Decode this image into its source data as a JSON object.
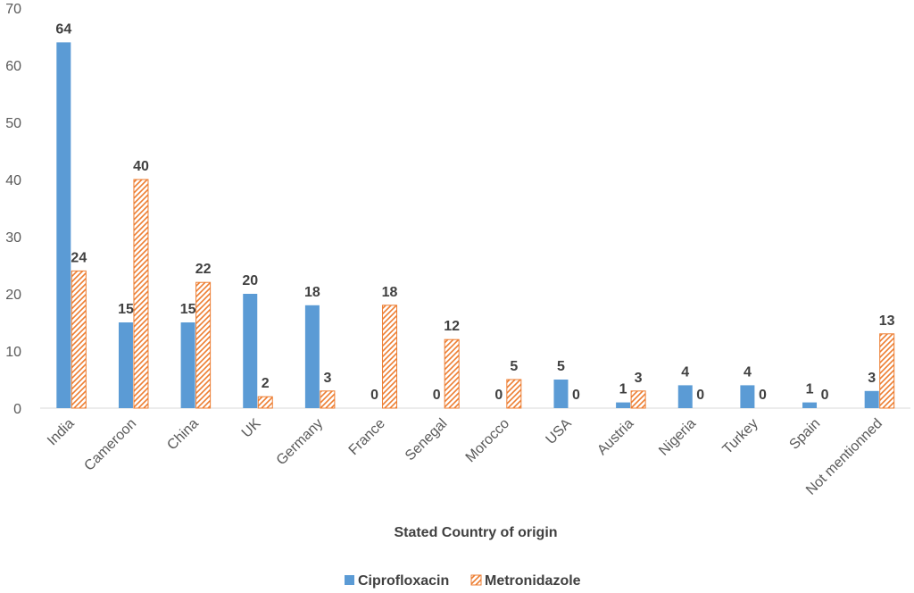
{
  "chart_data": {
    "type": "bar",
    "title": "",
    "xlabel": "Stated Country of origin",
    "ylabel": "",
    "ylim": [
      0,
      70
    ],
    "yticks": [
      0,
      10,
      20,
      30,
      40,
      50,
      60,
      70
    ],
    "grid": false,
    "legend_position": "bottom",
    "categories": [
      "India",
      "Cameroon",
      "China",
      "UK",
      "Germany",
      "France",
      "Senegal",
      "Morocco",
      "USA",
      "Austria",
      "Nigeria",
      "Turkey",
      "Spain",
      "Not mentionned"
    ],
    "series": [
      {
        "name": "Ciprofloxacin",
        "color": "#5B9BD5",
        "pattern": "solid",
        "values": [
          64,
          15,
          15,
          20,
          18,
          0,
          0,
          0,
          5,
          1,
          4,
          4,
          1,
          3
        ]
      },
      {
        "name": "Metronidazole",
        "color": "#ED7D31",
        "pattern": "diagonal-hatch",
        "values": [
          24,
          40,
          22,
          2,
          3,
          18,
          12,
          5,
          0,
          3,
          0,
          0,
          0,
          13
        ]
      }
    ]
  }
}
